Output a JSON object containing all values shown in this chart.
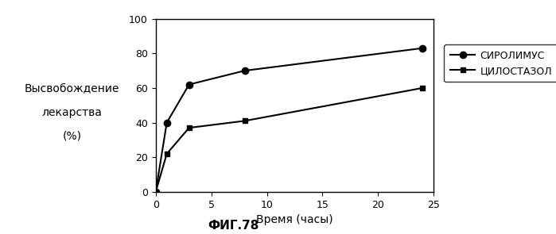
{
  "sirolimus_x": [
    0,
    1,
    3,
    8,
    24
  ],
  "sirolimus_y": [
    0,
    40,
    62,
    70,
    83
  ],
  "cilostazol_x": [
    0,
    1,
    3,
    8,
    24
  ],
  "cilostazol_y": [
    0,
    22,
    37,
    41,
    60
  ],
  "sirolimus_label": "СИРОЛИМУС",
  "cilostazol_label": "ЦИЛОСТАЗОЛ",
  "xlabel": "Время (часы)",
  "ylabel_line1": "Высвобождение",
  "ylabel_line2": "лекарства",
  "ylabel_line3": "(%)",
  "title": "ФИГ.78",
  "xlim": [
    0,
    25
  ],
  "ylim": [
    0,
    100
  ],
  "xticks": [
    0,
    5,
    10,
    15,
    20,
    25
  ],
  "yticks": [
    0,
    20,
    40,
    60,
    80,
    100
  ],
  "line_color": "#000000",
  "bg_color": "#ffffff"
}
